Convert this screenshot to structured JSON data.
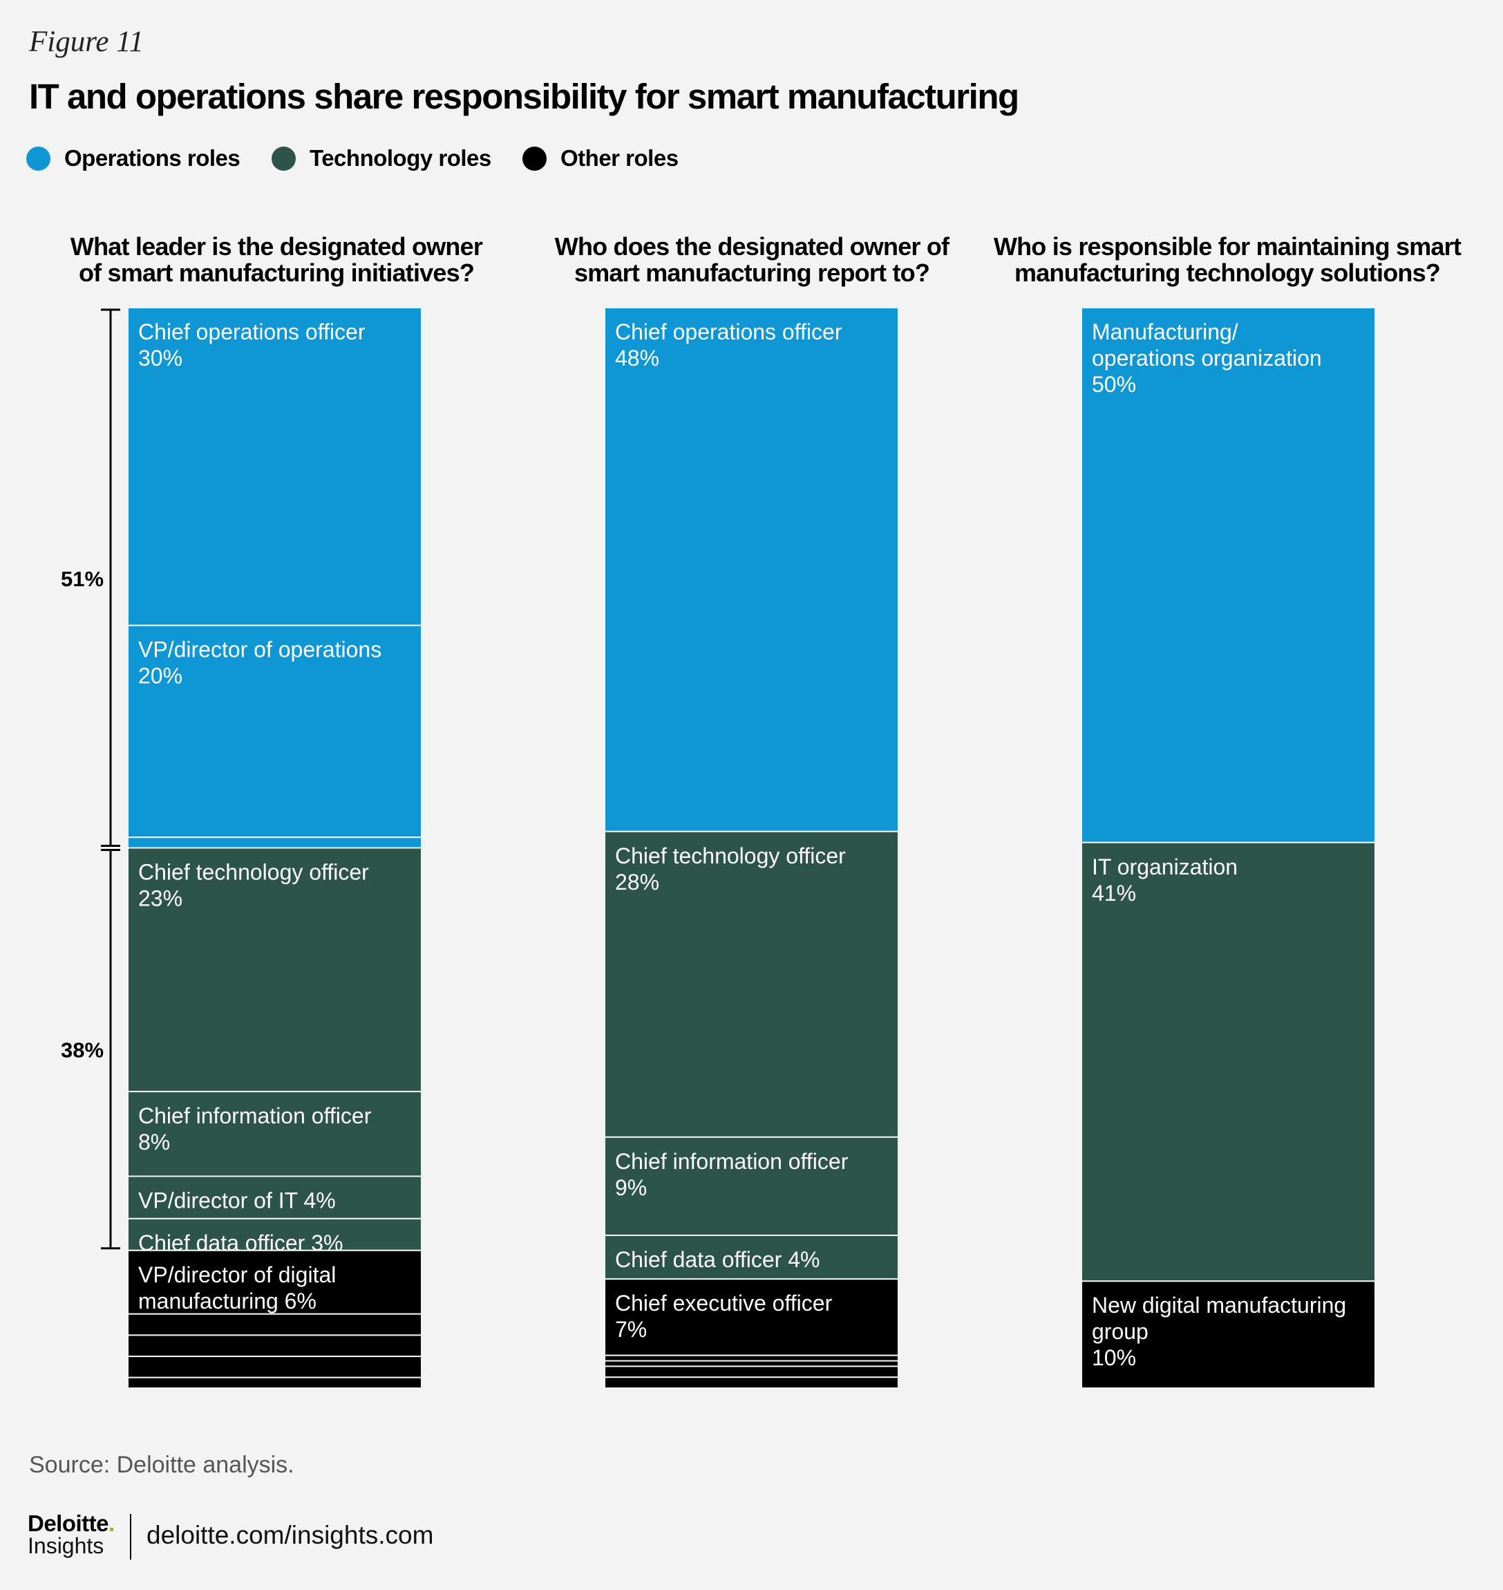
{
  "figure_label": "Figure 11",
  "title": "IT and operations share responsibility for smart manufacturing",
  "legend": [
    {
      "label": "Operations roles",
      "color": "#0f96d4"
    },
    {
      "label": "Technology roles",
      "color": "#2d544b"
    },
    {
      "label": "Other roles",
      "color": "#000000"
    }
  ],
  "colors": {
    "operations": "#0f96d4",
    "technology": "#2d544b",
    "other": "#000000"
  },
  "chart_data": [
    {
      "type": "stacked-bar",
      "title": "What leader is the designated owner of smart manufacturing initiatives?",
      "title_lines": [
        "What leader is the designated owner",
        "of smart manufacturing initiatives?"
      ],
      "segments": [
        {
          "category": "operations",
          "value": 30,
          "label_lines": [
            "Chief operations officer",
            "30%"
          ]
        },
        {
          "category": "operations",
          "value": 20,
          "label_lines": [
            "VP/director of operations",
            "20%"
          ]
        },
        {
          "category": "operations",
          "value": 1,
          "label_lines": []
        },
        {
          "category": "technology",
          "value": 23,
          "label_lines": [
            "Chief technology officer",
            "23%"
          ]
        },
        {
          "category": "technology",
          "value": 8,
          "label_lines": [
            "Chief information officer",
            "8%"
          ]
        },
        {
          "category": "technology",
          "value": 4,
          "label_lines": [
            "VP/director of IT 4%"
          ]
        },
        {
          "category": "technology",
          "value": 3,
          "label_lines": [
            "Chief data officer 3%"
          ]
        },
        {
          "category": "other",
          "value": 6,
          "label_lines": [
            "VP/director of digital",
            "manufacturing 6%"
          ]
        },
        {
          "category": "other",
          "value": 2,
          "label_lines": []
        },
        {
          "category": "other",
          "value": 2,
          "label_lines": []
        },
        {
          "category": "other",
          "value": 2,
          "label_lines": []
        },
        {
          "category": "other",
          "value": 1,
          "label_lines": []
        }
      ],
      "brackets": [
        {
          "label": "51%",
          "value": 51
        },
        {
          "label": "38%",
          "value": 38
        }
      ]
    },
    {
      "type": "stacked-bar",
      "title": "Who does the designated owner of smart manufacturing report to?",
      "title_lines": [
        "Who does the designated owner of",
        "smart manufacturing report to?"
      ],
      "segments": [
        {
          "category": "operations",
          "value": 48,
          "label_lines": [
            "Chief operations officer",
            "48%"
          ]
        },
        {
          "category": "technology",
          "value": 28,
          "label_lines": [
            "Chief technology officer",
            "28%"
          ]
        },
        {
          "category": "technology",
          "value": 9,
          "label_lines": [
            "Chief information officer",
            "9%"
          ]
        },
        {
          "category": "technology",
          "value": 4,
          "label_lines": [
            "Chief data officer 4%"
          ]
        },
        {
          "category": "other",
          "value": 7,
          "label_lines": [
            "Chief executive officer",
            "7%"
          ]
        },
        {
          "category": "other",
          "value": 0.5,
          "label_lines": []
        },
        {
          "category": "other",
          "value": 0.5,
          "label_lines": []
        },
        {
          "category": "other",
          "value": 1,
          "label_lines": []
        },
        {
          "category": "other",
          "value": 1,
          "label_lines": []
        }
      ]
    },
    {
      "type": "stacked-bar",
      "title": "Who is responsible for maintaining smart manufacturing technology solutions?",
      "title_lines": [
        "Who is responsible for maintaining smart",
        "manufacturing technology solutions?"
      ],
      "segments": [
        {
          "category": "operations",
          "value": 50,
          "label_lines": [
            "Manufacturing/",
            "operations organization",
            "50%"
          ]
        },
        {
          "category": "technology",
          "value": 41,
          "label_lines": [
            "IT organization",
            "41%"
          ]
        },
        {
          "category": "other",
          "value": 10,
          "label_lines": [
            "New digital manufacturing",
            "group",
            "10%"
          ]
        }
      ]
    }
  ],
  "source": "Source: Deloitte analysis.",
  "footer": {
    "logo_name": "Deloitte",
    "logo_dot": ".",
    "logo_sub": "Insights",
    "url": "deloitte.com/insights.com"
  }
}
